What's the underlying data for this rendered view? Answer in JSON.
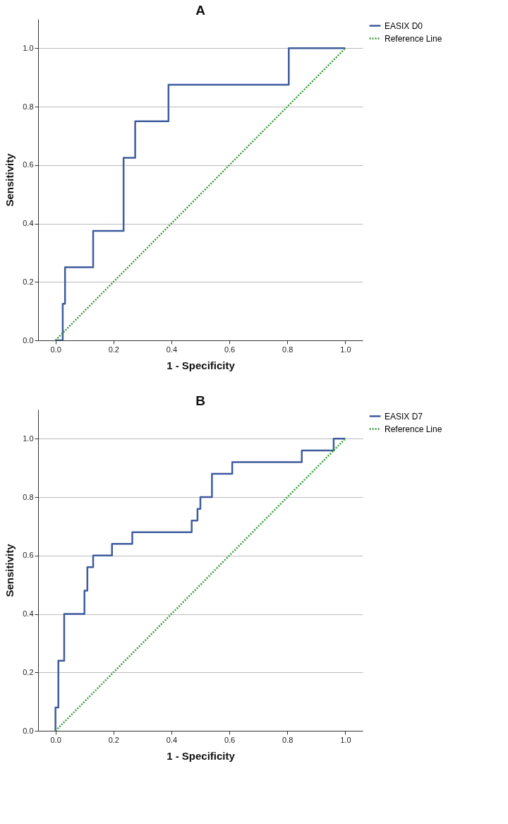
{
  "chart_data": [
    {
      "type": "step",
      "title": "A",
      "xlabel": "1 - Specificity",
      "ylabel": "Sensitivity",
      "xlim": [
        -0.06,
        1.06
      ],
      "ylim": [
        0,
        1.1
      ],
      "xticks": [
        {
          "value": 0,
          "label": "0.0"
        },
        {
          "value": 0.2,
          "label": "0.2"
        },
        {
          "value": 0.4,
          "label": "0.4"
        },
        {
          "value": 0.6,
          "label": "0.6"
        },
        {
          "value": 0.8,
          "label": "0.8"
        },
        {
          "value": 1,
          "label": "1.0"
        }
      ],
      "yticks": [
        {
          "value": 0,
          "label": "0.0"
        },
        {
          "value": 0.2,
          "label": "0.2"
        },
        {
          "value": 0.4,
          "label": "0.4"
        },
        {
          "value": 0.6,
          "label": "0.6"
        },
        {
          "value": 0.8,
          "label": "0.8"
        },
        {
          "value": 1,
          "label": "1.0"
        }
      ],
      "grid": "y",
      "legend": "right",
      "series": [
        {
          "name": "EASIX D0",
          "color": "#3f5c9e",
          "line_style": "solid",
          "x": [
            0,
            0.025,
            0.033,
            0.13,
            0.235,
            0.275,
            0.39,
            0.805,
            1
          ],
          "values": [
            0,
            0.125,
            0.25,
            0.375,
            0.625,
            0.75,
            0.875,
            1,
            1
          ]
        },
        {
          "name": "Reference Line",
          "type": "line",
          "color": "#3a9a3a",
          "line_style": "dotted",
          "x": [
            0,
            1
          ],
          "values": [
            0,
            1
          ]
        }
      ]
    },
    {
      "type": "step",
      "title": "B",
      "xlabel": "1 - Specificity",
      "ylabel": "Sensitivity",
      "xlim": [
        -0.06,
        1.06
      ],
      "ylim": [
        0,
        1.1
      ],
      "xticks": [
        {
          "value": 0,
          "label": "0.0"
        },
        {
          "value": 0.2,
          "label": "0.2"
        },
        {
          "value": 0.4,
          "label": "0.4"
        },
        {
          "value": 0.6,
          "label": "0.6"
        },
        {
          "value": 0.8,
          "label": "0.8"
        },
        {
          "value": 1,
          "label": "1.0"
        }
      ],
      "yticks": [
        {
          "value": 0,
          "label": "0.0"
        },
        {
          "value": 0.2,
          "label": "0.2"
        },
        {
          "value": 0.4,
          "label": "0.4"
        },
        {
          "value": 0.6,
          "label": "0.6"
        },
        {
          "value": 0.8,
          "label": "0.8"
        },
        {
          "value": 1,
          "label": "1.0"
        }
      ],
      "grid": "y",
      "legend": "right",
      "series": [
        {
          "name": "EASIX D7",
          "color": "#3f5c9e",
          "line_style": "solid",
          "x": [
            0,
            0,
            0.01,
            0.03,
            0.1,
            0.11,
            0.13,
            0.195,
            0.265,
            0.47,
            0.49,
            0.5,
            0.54,
            0.61,
            0.85,
            0.96,
            1
          ],
          "values": [
            0,
            0.08,
            0.24,
            0.4,
            0.48,
            0.56,
            0.6,
            0.64,
            0.68,
            0.72,
            0.76,
            0.8,
            0.88,
            0.92,
            0.96,
            1,
            1
          ]
        },
        {
          "name": "Reference Line",
          "type": "line",
          "color": "#3a9a3a",
          "line_style": "dotted",
          "x": [
            0,
            1
          ],
          "values": [
            0,
            1
          ]
        }
      ]
    }
  ]
}
